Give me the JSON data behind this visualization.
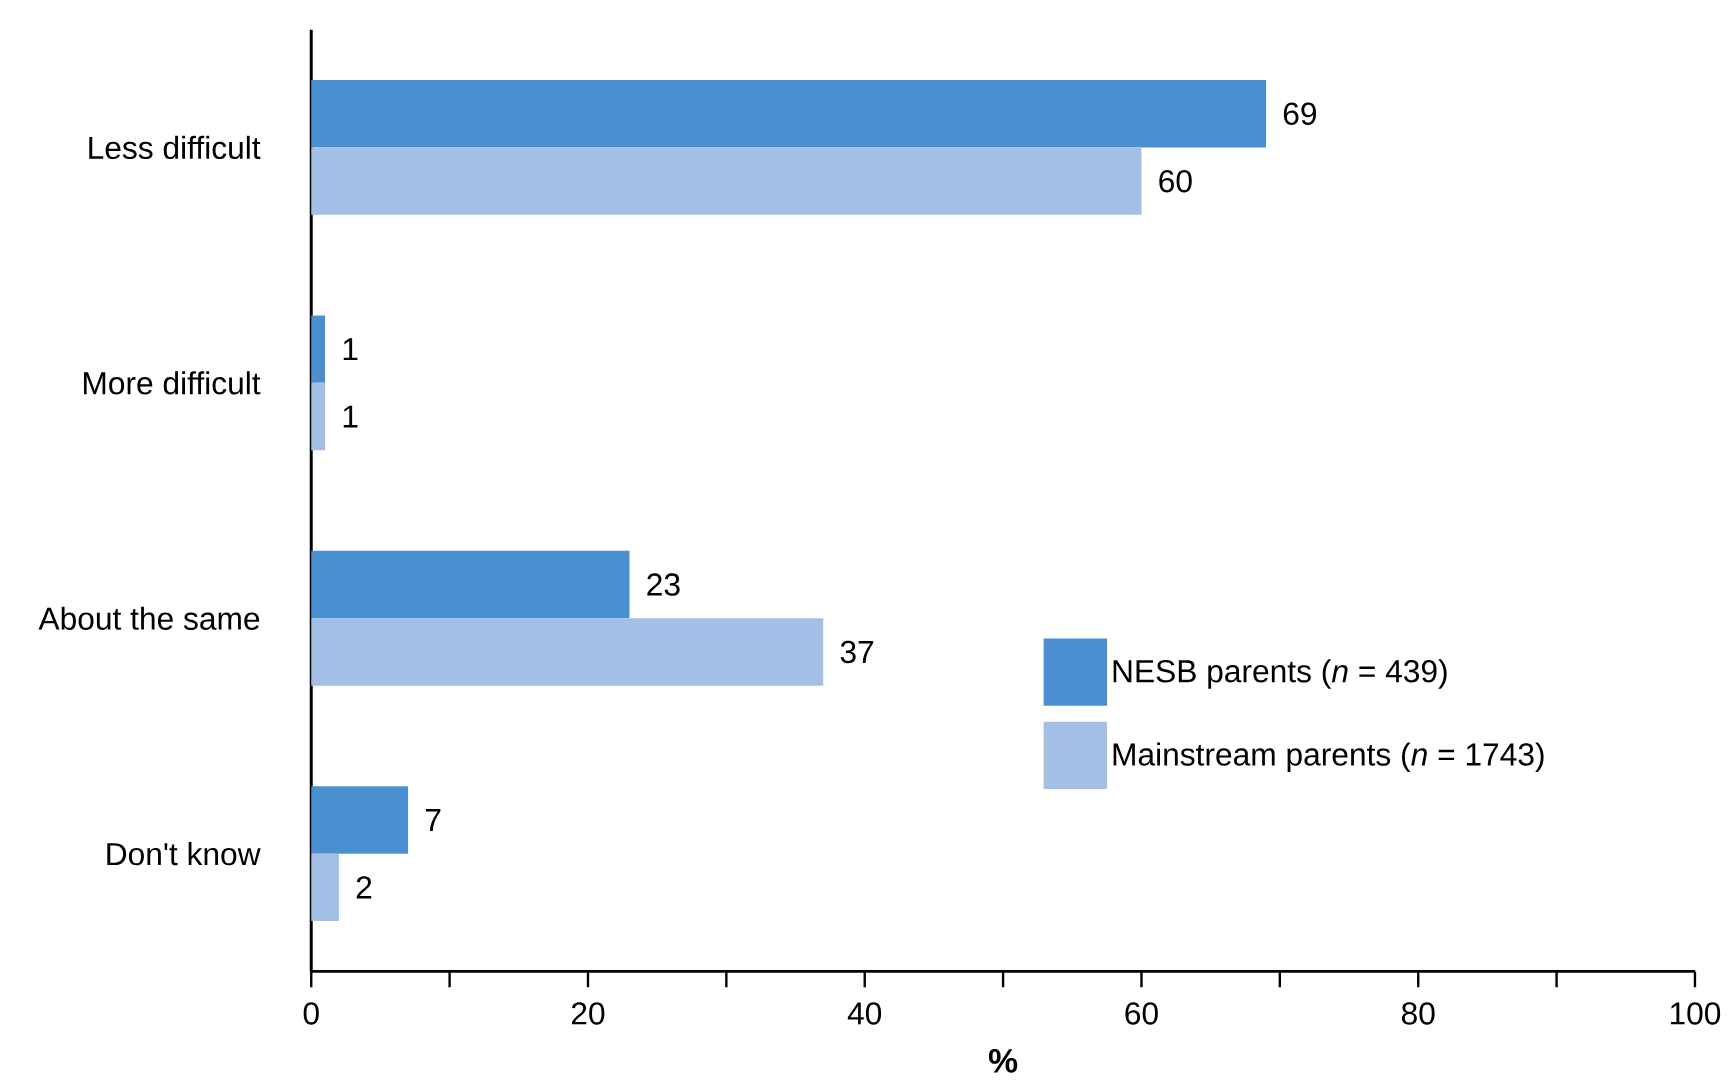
{
  "chart_data": {
    "type": "bar",
    "orientation": "horizontal",
    "xlabel": "%",
    "categories": [
      "Less difficult",
      "More difficult",
      "About the same",
      "Don't know"
    ],
    "series": [
      {
        "name": "NESB parents (*n* = 439)",
        "color": "#4a8fcf",
        "values": [
          69,
          1,
          23,
          7
        ]
      },
      {
        "name": "Mainstream parents (*n* = 1743)",
        "color": "#a3bfe5",
        "values": [
          60,
          1,
          37,
          2
        ]
      }
    ],
    "xlim": [
      0,
      100
    ],
    "xticks": [
      0,
      {
        "value": 10,
        "label": null
      },
      20,
      {
        "value": 30,
        "label": null
      },
      40,
      {
        "value": 50,
        "label": null
      },
      60,
      {
        "value": 70,
        "label": null
      },
      80,
      {
        "value": 90,
        "label": null
      },
      100
    ],
    "data_labels": true,
    "grid": false,
    "legend": "right"
  }
}
